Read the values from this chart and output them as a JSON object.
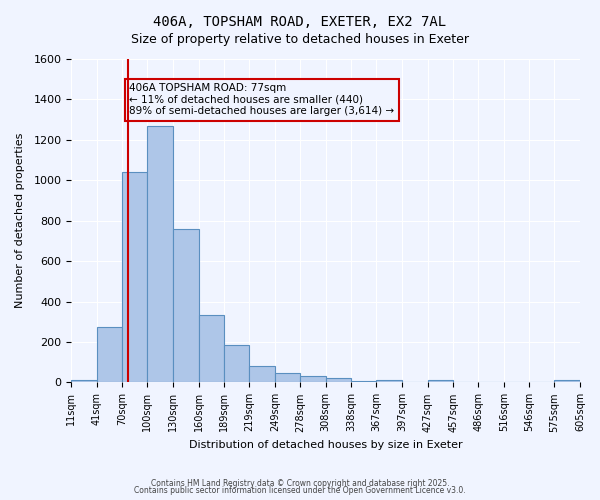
{
  "title_line1": "406A, TOPSHAM ROAD, EXETER, EX2 7AL",
  "title_line2": "Size of property relative to detached houses in Exeter",
  "xlabel": "Distribution of detached houses by size in Exeter",
  "ylabel": "Number of detached properties",
  "background_color": "#f0f4ff",
  "bar_color": "#aec6e8",
  "bar_edge_color": "#5a8fc0",
  "grid_color": "#ffffff",
  "annotation_box_color": "#cc0000",
  "vline_color": "#cc0000",
  "vline_x": 77,
  "annotation_text": "406A TOPSHAM ROAD: 77sqm\n← 11% of detached houses are smaller (440)\n89% of semi-detached houses are larger (3,614) →",
  "bin_edges": [
    11,
    41,
    70,
    100,
    130,
    160,
    189,
    219,
    249,
    278,
    308,
    338,
    367,
    397,
    427,
    457,
    486,
    516,
    546,
    575,
    605
  ],
  "bar_heights": [
    10,
    275,
    1040,
    1270,
    760,
    335,
    185,
    80,
    45,
    30,
    22,
    5,
    13,
    0,
    10,
    0,
    0,
    0,
    0,
    12
  ],
  "ylim": [
    0,
    1600
  ],
  "yticks": [
    0,
    200,
    400,
    600,
    800,
    1000,
    1200,
    1400,
    1600
  ],
  "footnote1": "Contains HM Land Registry data © Crown copyright and database right 2025.",
  "footnote2": "Contains public sector information licensed under the Open Government Licence v3.0."
}
